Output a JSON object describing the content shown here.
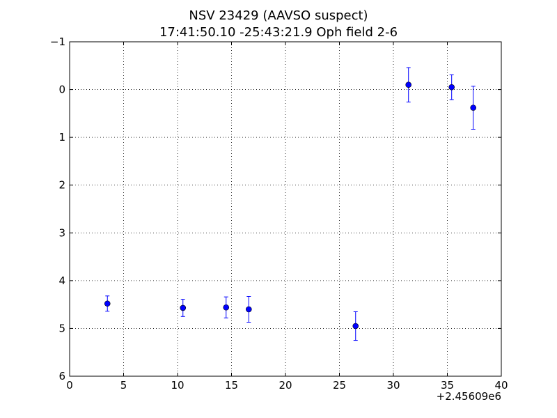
{
  "chart_data": {
    "type": "scatter",
    "title": "NSV 23429 (AAVSO suspect)",
    "subtitle": "17:41:50.10 -25:43:21.9 Oph field 2-6",
    "xlabel": "",
    "ylabel": "",
    "x_offset_label": "+2.45609e6",
    "xlim": [
      0,
      40
    ],
    "ylim": [
      6,
      -1
    ],
    "y_inverted": true,
    "grid": true,
    "marker_color": "#0000ff",
    "x_ticks": [
      0,
      5,
      10,
      15,
      20,
      25,
      30,
      35,
      40
    ],
    "x_tick_labels": [
      "0",
      "5",
      "10",
      "15",
      "20",
      "25",
      "30",
      "35",
      "40"
    ],
    "y_ticks": [
      -1,
      0,
      1,
      2,
      3,
      4,
      5,
      6
    ],
    "y_tick_labels": [
      "−1",
      "0",
      "1",
      "2",
      "3",
      "4",
      "5",
      "6"
    ],
    "points": [
      {
        "x": 3.5,
        "y": 4.48,
        "err": 0.16
      },
      {
        "x": 10.5,
        "y": 4.57,
        "err": 0.18
      },
      {
        "x": 14.5,
        "y": 4.56,
        "err": 0.22
      },
      {
        "x": 16.6,
        "y": 4.6,
        "err": 0.27
      },
      {
        "x": 26.5,
        "y": 4.95,
        "err": 0.3
      },
      {
        "x": 31.4,
        "y": -0.1,
        "err": 0.36
      },
      {
        "x": 35.4,
        "y": -0.05,
        "err": 0.26
      },
      {
        "x": 37.4,
        "y": 0.38,
        "err": 0.45
      }
    ]
  }
}
